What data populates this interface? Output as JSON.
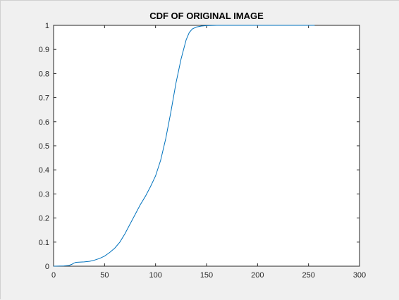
{
  "window": {
    "background": "#f0f0f0"
  },
  "chart_data": {
    "type": "line",
    "title": "CDF OF ORIGINAL IMAGE",
    "xlabel": "",
    "ylabel": "",
    "xlim": [
      0,
      300
    ],
    "ylim": [
      0,
      1
    ],
    "xticks": [
      0,
      50,
      100,
      150,
      200,
      250,
      300
    ],
    "yticks": [
      0,
      0.1,
      0.2,
      0.3,
      0.4,
      0.5,
      0.6,
      0.7,
      0.8,
      0.9,
      1
    ],
    "grid": false,
    "line_color": "#0072bd",
    "axes_color": "#262626",
    "plot_background": "#ffffff",
    "series": [
      {
        "x": [
          0,
          10,
          15,
          18,
          20,
          22,
          25,
          30,
          35,
          40,
          45,
          50,
          55,
          60,
          65,
          70,
          75,
          80,
          85,
          90,
          95,
          100,
          105,
          110,
          115,
          120,
          125,
          130,
          133,
          136,
          140,
          145,
          150,
          160,
          200,
          250,
          256
        ],
        "y": [
          0,
          0.001,
          0.003,
          0.008,
          0.013,
          0.016,
          0.017,
          0.018,
          0.02,
          0.025,
          0.032,
          0.042,
          0.057,
          0.075,
          0.1,
          0.135,
          0.175,
          0.215,
          0.255,
          0.29,
          0.33,
          0.375,
          0.44,
          0.53,
          0.64,
          0.76,
          0.86,
          0.94,
          0.97,
          0.985,
          0.993,
          0.997,
          0.999,
          1,
          1,
          1,
          1
        ]
      }
    ]
  }
}
